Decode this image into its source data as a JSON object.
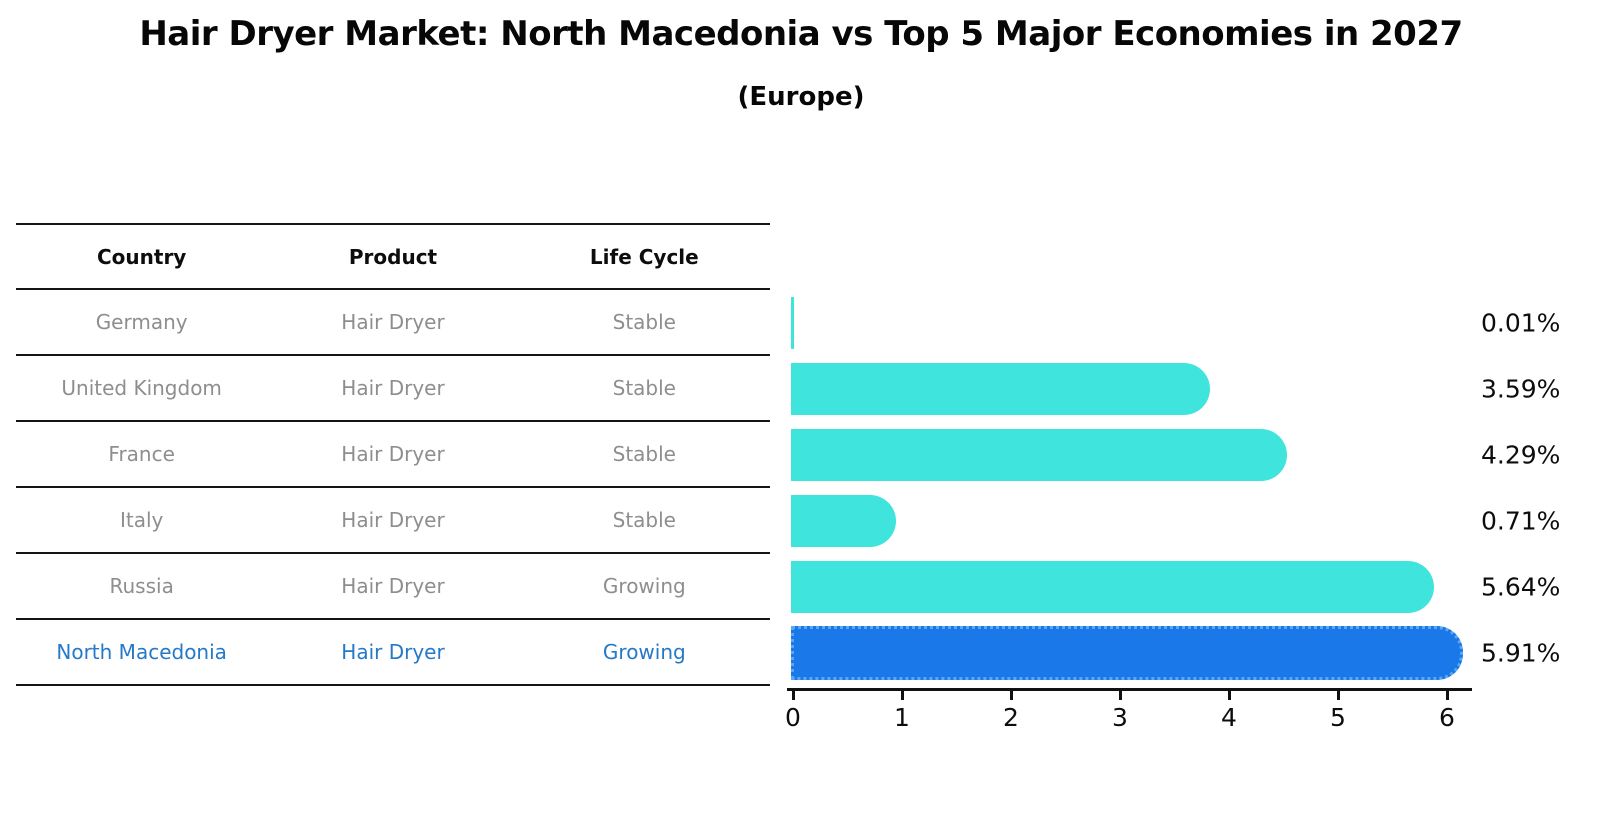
{
  "title": "Hair Dryer Market: North Macedonia vs Top 5 Major Economies in 2027",
  "subtitle": "(Europe)",
  "table": {
    "headers": [
      "Country",
      "Product",
      "Life Cycle"
    ],
    "rows": [
      {
        "country": "Germany",
        "product": "Hair Dryer",
        "life_cycle": "Stable",
        "highlight": false
      },
      {
        "country": "United Kingdom",
        "product": "Hair Dryer",
        "life_cycle": "Stable",
        "highlight": false
      },
      {
        "country": "France",
        "product": "Hair Dryer",
        "life_cycle": "Stable",
        "highlight": false
      },
      {
        "country": "Italy",
        "product": "Hair Dryer",
        "life_cycle": "Stable",
        "highlight": false
      },
      {
        "country": "Russia",
        "product": "Hair Dryer",
        "life_cycle": "Growing",
        "highlight": false
      },
      {
        "country": "North Macedonia",
        "product": "Hair Dryer",
        "life_cycle": "Growing",
        "highlight": true
      }
    ]
  },
  "chart_data": {
    "type": "bar",
    "orientation": "horizontal",
    "title": "Hair Dryer Market: North Macedonia vs Top 5 Major Economies in 2027",
    "subtitle": "(Europe)",
    "categories": [
      "Germany",
      "United Kingdom",
      "France",
      "Italy",
      "Russia",
      "North Macedonia"
    ],
    "values": [
      0.01,
      3.59,
      4.29,
      0.71,
      5.64,
      5.91
    ],
    "value_labels": [
      "0.01%",
      "3.59%",
      "4.29%",
      "0.71%",
      "5.64%",
      "5.91%"
    ],
    "xlim": [
      0,
      6
    ],
    "x_ticks": [
      "0",
      "1",
      "2",
      "3",
      "4",
      "5",
      "6"
    ],
    "grid": false,
    "legend": false,
    "highlight_index": 5
  },
  "colors": {
    "bar": "#3FE4DD",
    "highlight_bar": "#1B78E8",
    "highlight_bar_edge": "#5DA7F2",
    "row_text": "#8e8e8e",
    "highlight_text": "#2579c9",
    "axis": "#111111"
  }
}
